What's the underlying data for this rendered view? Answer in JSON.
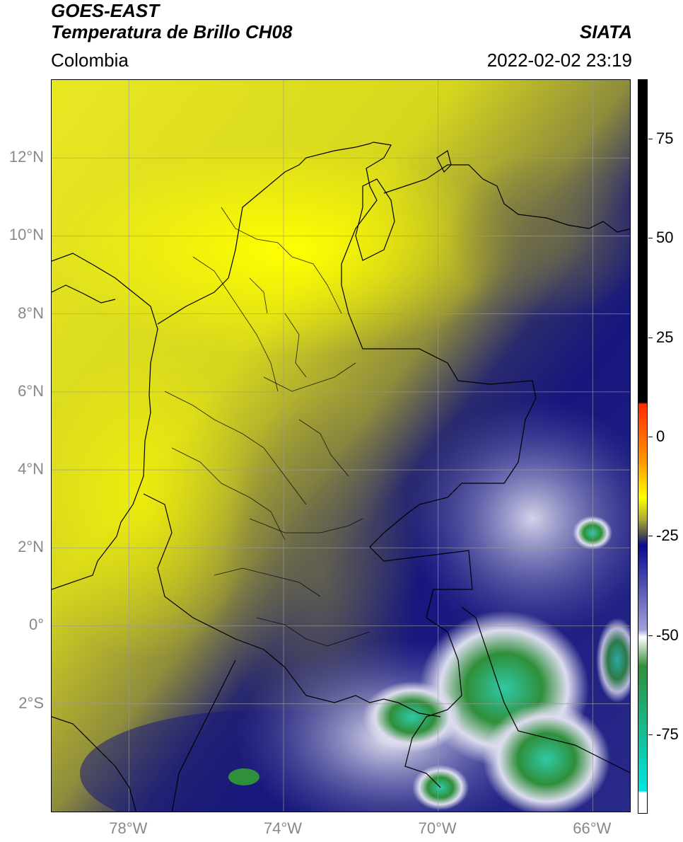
{
  "header": {
    "satellite": "GOES-EAST",
    "product": "Temperatura de Brillo CH08",
    "region": "Colombia",
    "agency": "SIATA",
    "timestamp": "2022-02-02 23:19"
  },
  "map": {
    "extent": {
      "lon_min": -80.0,
      "lon_max": -65.0,
      "lat_min": -4.8,
      "lat_max": 14.0
    },
    "lat_ticks": [
      {
        "value": 12,
        "label": "12°N"
      },
      {
        "value": 10,
        "label": "10°N"
      },
      {
        "value": 8,
        "label": "8°N"
      },
      {
        "value": 6,
        "label": "6°N"
      },
      {
        "value": 4,
        "label": "4°N"
      },
      {
        "value": 2,
        "label": "2°N"
      },
      {
        "value": 0,
        "label": "0°"
      },
      {
        "value": -2,
        "label": "2°S"
      }
    ],
    "lon_ticks": [
      {
        "value": -78,
        "label": "78°W"
      },
      {
        "value": -74,
        "label": "74°W"
      },
      {
        "value": -70,
        "label": "70°W"
      },
      {
        "value": -66,
        "label": "66°W"
      }
    ],
    "gridlines": true,
    "colors": {
      "warm": "#e6e61a",
      "mid": "#8a8a3a",
      "cold": "#14147a",
      "very_cold": "#d8d8ee",
      "coldest": "#2f8f3a",
      "extreme": "#30c9a8"
    }
  },
  "colorbar": {
    "min": -95,
    "max": 90,
    "ticks": [
      {
        "value": 75,
        "label": "75"
      },
      {
        "value": 50,
        "label": "50"
      },
      {
        "value": 25,
        "label": "25"
      },
      {
        "value": 0,
        "label": "0"
      },
      {
        "value": -25,
        "label": "-25"
      },
      {
        "value": -50,
        "label": "-50"
      },
      {
        "value": -75,
        "label": "-75"
      }
    ]
  }
}
